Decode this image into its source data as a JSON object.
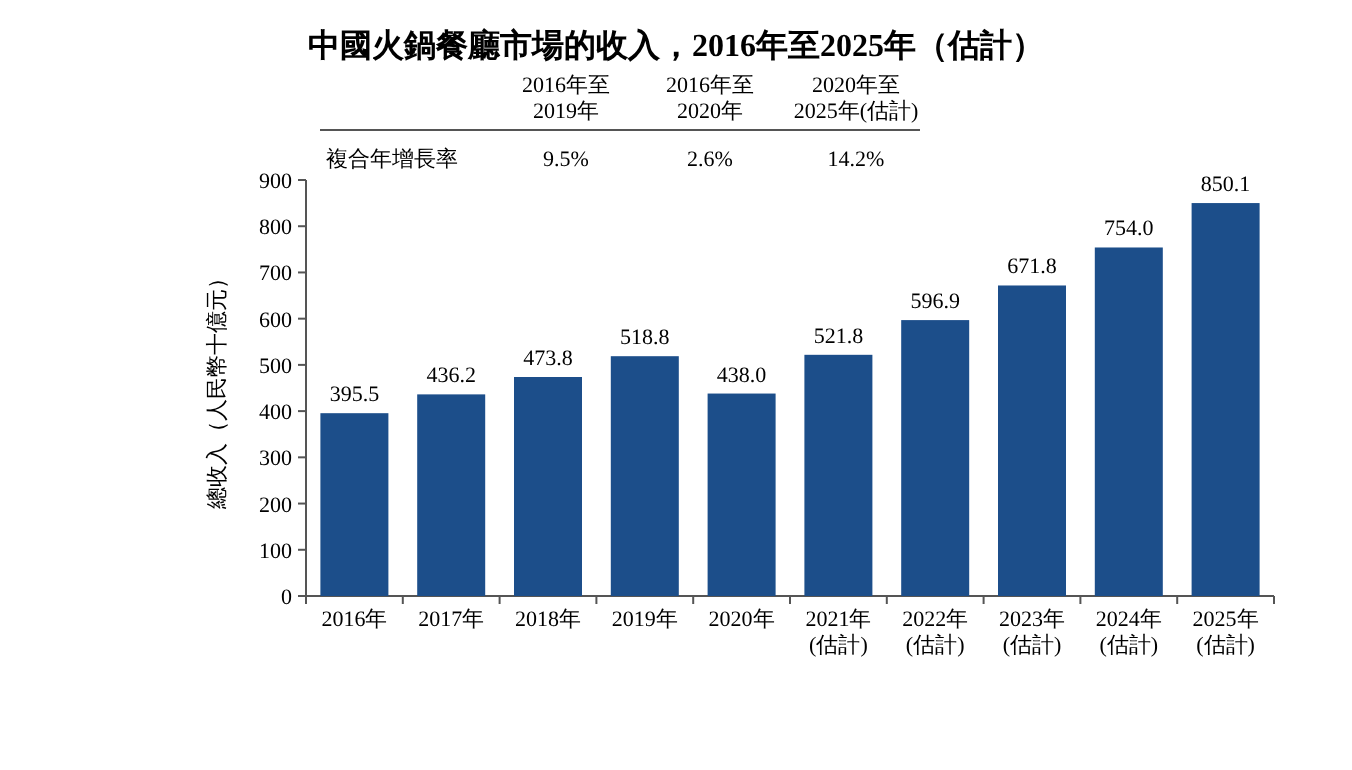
{
  "chart_data": {
    "type": "bar",
    "title": "中國火鍋餐廳市場的收入，2016年至2025年（估計）",
    "ylabel": "總收入（人民幣十億元）",
    "categories": [
      "2016年",
      "2017年",
      "2018年",
      "2019年",
      "2020年",
      "2021年\n(估計)",
      "2022年\n(估計)",
      "2023年\n(估計)",
      "2024年\n(估計)",
      "2025年\n(估計)"
    ],
    "values": [
      395.5,
      436.2,
      473.8,
      518.8,
      438.0,
      521.8,
      596.9,
      671.8,
      754.0,
      850.1
    ],
    "value_labels": [
      "395.5",
      "436.2",
      "473.8",
      "518.8",
      "438.0",
      "521.8",
      "596.9",
      "671.8",
      "754.0",
      "850.1"
    ],
    "color": "#1c4e8a",
    "ylim": [
      0,
      900
    ],
    "yticks": [
      0,
      100,
      200,
      300,
      400,
      500,
      600,
      700,
      800,
      900
    ],
    "annotations": [
      "複合年增長率",
      "2016年至\n2019年",
      "9.5%",
      "2016年至\n2020年",
      "2.6%",
      "2020年至\n2025年(估計)",
      "14.2%"
    ]
  }
}
